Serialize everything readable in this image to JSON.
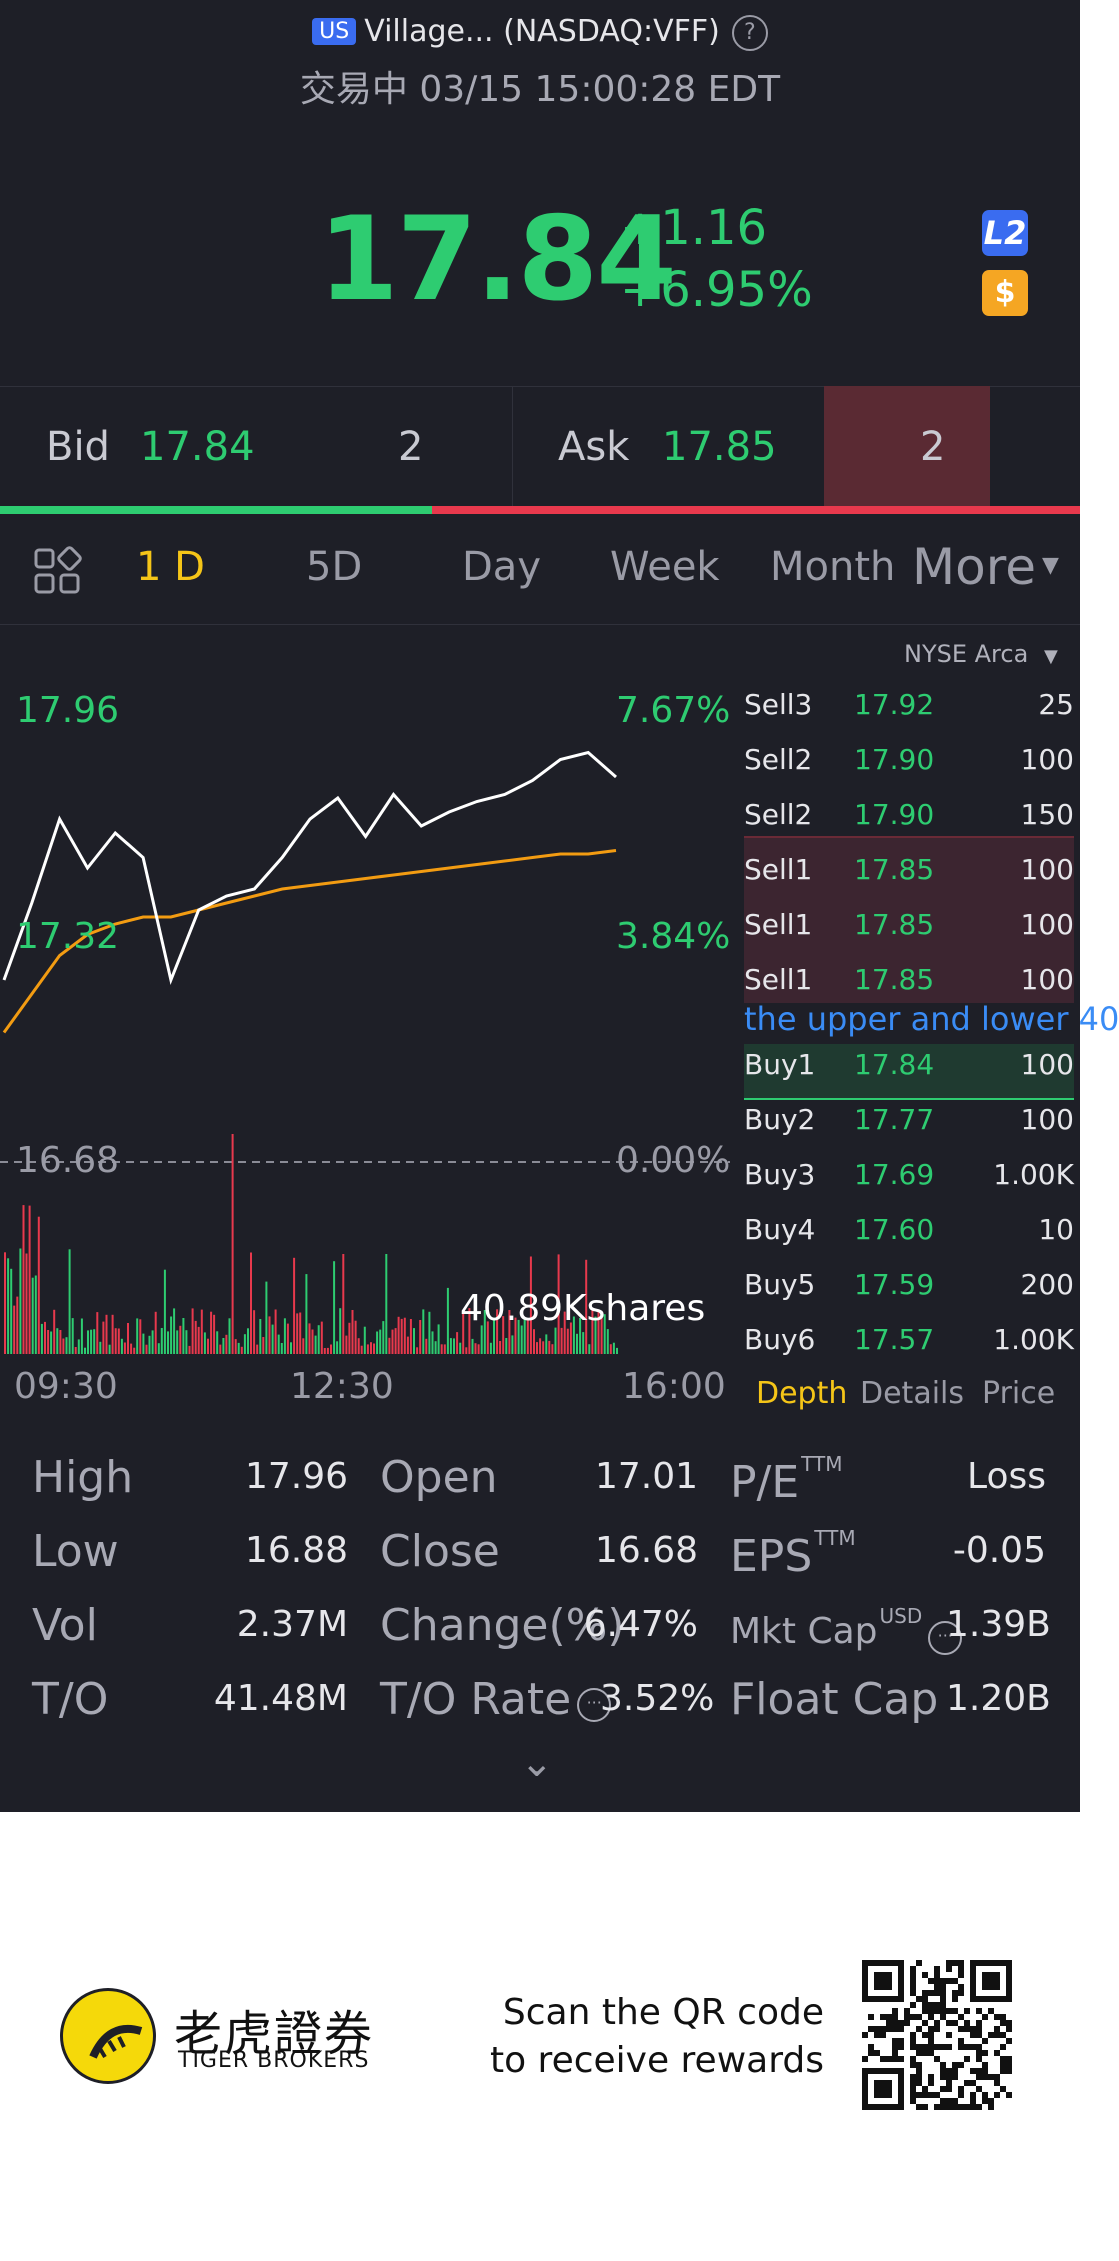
{
  "header": {
    "market_badge": "US",
    "ticker_title": "Village... (NASDAQ:VFF)",
    "help": "?",
    "status_line": "交易中 03/15 15:00:28 EDT"
  },
  "quote": {
    "price": "17.84",
    "change": "+1.16",
    "change_pct": "+6.95%",
    "l2_badge": "L2",
    "dollar_badge": "$"
  },
  "bid_ask": {
    "bid_label": "Bid",
    "bid_price": "17.84",
    "bid_size": "2",
    "ask_label": "Ask",
    "ask_price": "17.85",
    "ask_size": "2",
    "bid_fraction": 0.4
  },
  "tabs": {
    "items": [
      "1 D",
      "5D",
      "Day",
      "Week",
      "Month"
    ],
    "active": "1 D",
    "more": "More"
  },
  "chart_labels": {
    "high_price": "17.96",
    "high_pct": "7.67%",
    "mid_price": "17.32",
    "mid_pct": "3.84%",
    "base_price": "16.68",
    "base_pct": "0.00%",
    "volume_label": "40.89Kshares",
    "time_start": "09:30",
    "time_mid": "12:30",
    "time_end": "16:00"
  },
  "chart_data": {
    "type": "line",
    "ylim": [
      16.68,
      17.96
    ],
    "y_ticks": [
      "17.96",
      "17.32",
      "16.68"
    ],
    "x_ticks": [
      "09:30",
      "12:30",
      "16:00"
    ],
    "series": [
      {
        "color": "#ffffff",
        "x": [
          "09:30",
          "09:45",
          "10:00",
          "10:15",
          "10:30",
          "10:45",
          "11:00",
          "11:15",
          "11:30",
          "11:45",
          "12:00",
          "12:15",
          "12:30",
          "12:45",
          "13:00",
          "13:15",
          "13:30",
          "13:45",
          "14:00",
          "14:15",
          "14:30",
          "14:45",
          "15:00"
        ],
        "values": [
          17.2,
          17.42,
          17.66,
          17.52,
          17.62,
          17.55,
          17.2,
          17.4,
          17.44,
          17.46,
          17.55,
          17.66,
          17.72,
          17.61,
          17.73,
          17.64,
          17.68,
          17.71,
          17.73,
          17.77,
          17.83,
          17.85,
          17.78
        ]
      },
      {
        "color": "#f39c12",
        "x": [
          "09:30",
          "09:45",
          "10:00",
          "10:15",
          "10:30",
          "10:45",
          "11:00",
          "11:15",
          "11:30",
          "11:45",
          "12:00",
          "12:15",
          "12:30",
          "12:45",
          "13:00",
          "13:15",
          "13:30",
          "13:45",
          "14:00",
          "14:15",
          "14:30",
          "14:45",
          "15:00"
        ],
        "values": [
          17.05,
          17.16,
          17.27,
          17.33,
          17.36,
          17.38,
          17.38,
          17.4,
          17.42,
          17.44,
          17.46,
          17.47,
          17.48,
          17.49,
          17.5,
          17.51,
          17.52,
          17.53,
          17.54,
          17.55,
          17.56,
          17.56,
          17.57
        ]
      }
    ],
    "volume_bar_colors": {
      "up": "#2ecc71",
      "down": "#e8394d"
    }
  },
  "order_book": {
    "exchange": "NYSE Arca",
    "sells": [
      {
        "name": "Sell3",
        "price": "17.92",
        "qty": "25"
      },
      {
        "name": "Sell2",
        "price": "17.90",
        "qty": "100"
      },
      {
        "name": "Sell2",
        "price": "17.90",
        "qty": "150"
      },
      {
        "name": "Sell1",
        "price": "17.85",
        "qty": "100"
      },
      {
        "name": "Sell1",
        "price": "17.85",
        "qty": "100"
      },
      {
        "name": "Sell1",
        "price": "17.85",
        "qty": "100"
      }
    ],
    "marquee": "the upper and lower 40",
    "buys": [
      {
        "name": "Buy1",
        "price": "17.84",
        "qty": "100"
      },
      {
        "name": "Buy2",
        "price": "17.77",
        "qty": "100"
      },
      {
        "name": "Buy3",
        "price": "17.69",
        "qty": "1.00K"
      },
      {
        "name": "Buy4",
        "price": "17.60",
        "qty": "10"
      },
      {
        "name": "Buy5",
        "price": "17.59",
        "qty": "200"
      },
      {
        "name": "Buy6",
        "price": "17.57",
        "qty": "1.00K"
      }
    ],
    "tabs": [
      "Depth",
      "Details",
      "Price"
    ]
  },
  "stats": {
    "high_label": "High",
    "high": "17.96",
    "low_label": "Low",
    "low": "16.88",
    "vol_label": "Vol",
    "vol": "2.37M",
    "to_label": "T/O",
    "to": "41.48M",
    "open_label": "Open",
    "open": "17.01",
    "close_label": "Close",
    "close": "16.68",
    "chg_label": "Change(%)",
    "chg": "6.47%",
    "torate_label": "T/O Rate",
    "torate": "3.52%",
    "pe_label": "P/E",
    "pe_sup": "TTM",
    "pe": "Loss",
    "eps_label": "EPS",
    "eps_sup": "TTM",
    "eps": "-0.05",
    "mktcap_label": "Mkt Cap",
    "mktcap_sup": "USD",
    "mktcap": "1.39B",
    "floatcap_label": "Float Cap",
    "floatcap": "1.20B"
  },
  "footer": {
    "brand_cn": "老虎證券",
    "brand_en": "TIGER BROKERS",
    "scan_line1": "Scan the QR code",
    "scan_line2": "to receive rewards"
  }
}
